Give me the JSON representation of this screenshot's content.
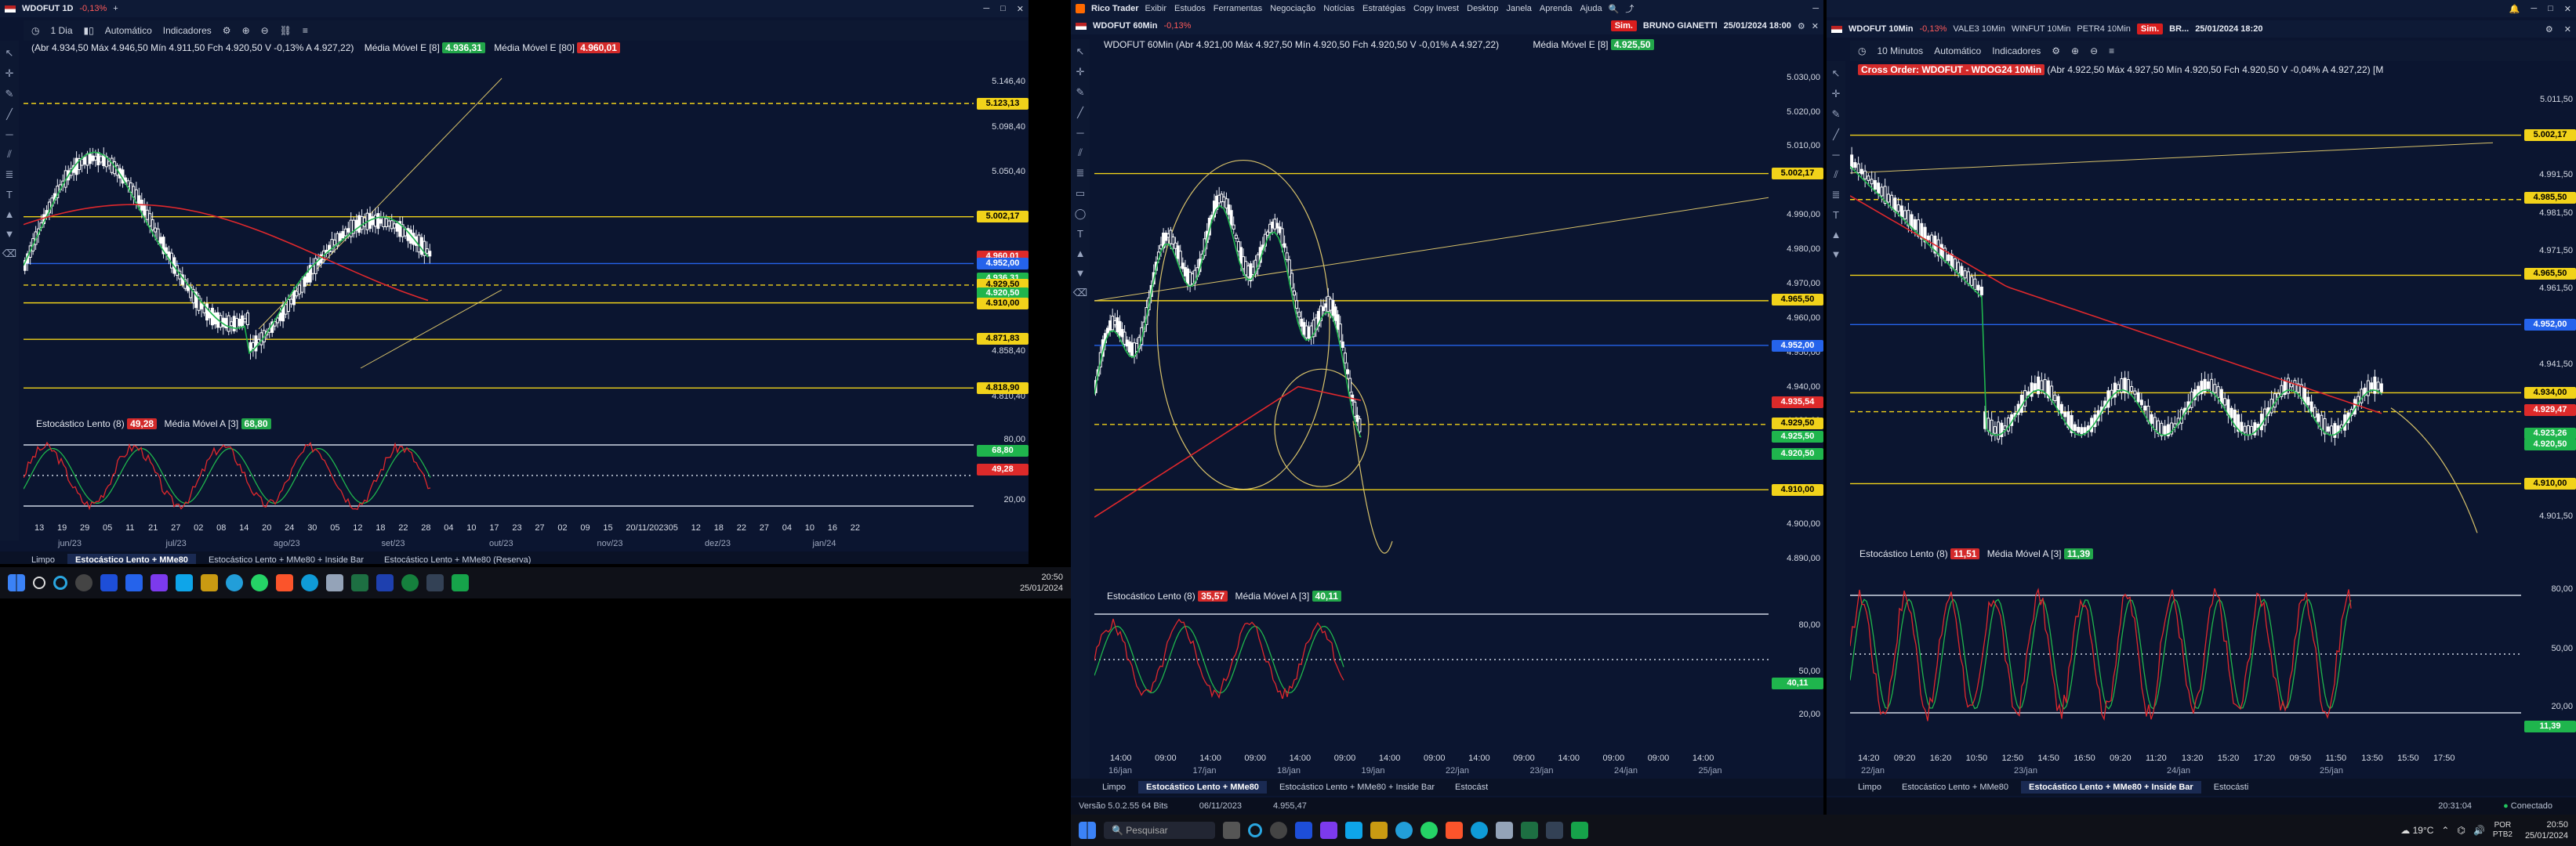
{
  "win1": {
    "title_symbol": "WDOFUT 1D",
    "title_change": "-0,13%",
    "timeframe": "1 Dia",
    "mode": "Automático",
    "indicators": "Indicadores",
    "quote": "(Abr 4.934,50 Máx 4.946,50 Mín 4.911,50 Fch 4.920,50 V -0,13% A 4.927,22)",
    "ma_fast_label": "Média Móvel E [8]",
    "ma_fast_value": "4.936,31",
    "ma_slow_label": "Média Móvel E [80]",
    "ma_slow_value": "4.960,01",
    "y_labels": [
      "5.146,40",
      "5.098,40",
      "5.050,40",
      "4.858,40",
      "4.810,40"
    ],
    "price_tags": [
      {
        "text": "5.123,13",
        "kind": "y"
      },
      {
        "text": "5.002,17",
        "kind": "y"
      },
      {
        "text": "4.960,01",
        "kind": "r"
      },
      {
        "text": "4.952,00",
        "kind": "b"
      },
      {
        "text": "4.936,31",
        "kind": "g"
      },
      {
        "text": "4.929,50",
        "kind": "y"
      },
      {
        "text": "4.920,50",
        "kind": "g"
      },
      {
        "text": "4.910,00",
        "kind": "y"
      },
      {
        "text": "4.871,83",
        "kind": "y"
      },
      {
        "text": "4.818,90",
        "kind": "y"
      }
    ],
    "stoch_label": "Estocástico Lento (8)",
    "stoch_value": "49,28",
    "stoch_ma_label": "Média Móvel A [3]",
    "stoch_ma_value": "68,80",
    "stoch_levels": [
      "80,00",
      "20,00"
    ],
    "stoch_tags": [
      "68,80",
      "49,28"
    ],
    "time_labels": [
      "13",
      "19",
      "29",
      "05",
      "11",
      "21",
      "27",
      "02",
      "08",
      "14",
      "20",
      "24",
      "30",
      "05",
      "12",
      "18",
      "22",
      "28",
      "04",
      "10",
      "17",
      "23",
      "27",
      "02",
      "09",
      "15",
      "20/11/2023",
      "05",
      "12",
      "18",
      "22",
      "27",
      "04",
      "10",
      "16",
      "22"
    ],
    "month_labels": [
      "jun/23",
      "jul/23",
      "ago/23",
      "set/23",
      "out/23",
      "nov/23",
      "dez/23",
      "jan/24"
    ],
    "tabs": [
      "Limpo",
      "Estocástico Lento + MMe80",
      "Estocástico Lento + MMe80 + Inside Bar",
      "Estocástico Lento + MMe80 (Reserva)"
    ],
    "active_tab": 1
  },
  "win2": {
    "app": "Rico Trader",
    "menus": [
      "Exibir",
      "Estudos",
      "Ferramentas",
      "Negociação",
      "Notícias",
      "Estratégias",
      "Copy Invest",
      "Desktop",
      "Janela",
      "Aprenda",
      "Ajuda"
    ],
    "chart_symbol": "WDOFUT 60Min",
    "title_change": "-0,13%",
    "sim": "Sim.",
    "user": "BRUNO GIANETTI",
    "datetime": "25/01/2024 18:00",
    "quote": "WDOFUT 60Min  (Abr 4.921,00 Máx 4.927,50 Mín 4.920,50 Fch 4.920,50 V -0,01% A 4.927,22)",
    "ma_label": "Média Móvel E [8]",
    "ma_value": "4.925,50",
    "y_labels": [
      "5.030,00",
      "5.020,00",
      "5.010,00",
      "4.990,00",
      "4.980,00",
      "4.970,00",
      "4.960,00",
      "4.950,00",
      "4.940,00",
      "4.930,00",
      "4.900,00",
      "4.890,00"
    ],
    "price_tags": [
      {
        "text": "5.002,17",
        "kind": "y"
      },
      {
        "text": "4.965,50",
        "kind": "y"
      },
      {
        "text": "4.952,00",
        "kind": "b"
      },
      {
        "text": "4.935,54",
        "kind": "r"
      },
      {
        "text": "4.929,50",
        "kind": "y"
      },
      {
        "text": "4.925,50",
        "kind": "g"
      },
      {
        "text": "4.920,50",
        "kind": "g"
      },
      {
        "text": "4.910,00",
        "kind": "y"
      }
    ],
    "stoch_label": "Estocástico Lento (8)",
    "stoch_value": "35,57",
    "stoch_ma_label": "Média Móvel A [3]",
    "stoch_ma_value": "40,11",
    "stoch_levels": [
      "80,00",
      "50,00",
      "20,00"
    ],
    "time_labels": [
      "14:00",
      "09:00",
      "14:00",
      "09:00",
      "14:00",
      "09:00",
      "14:00",
      "09:00",
      "14:00",
      "09:00",
      "14:00",
      "09:00",
      "09:00",
      "14:00"
    ],
    "date_labels": [
      "16/jan",
      "17/jan",
      "18/jan",
      "19/jan",
      "22/jan",
      "23/jan",
      "24/jan",
      "25/jan"
    ],
    "tabs": [
      "Limpo",
      "Estocástico Lento + MMe80",
      "Estocástico Lento + MMe80 + Inside Bar",
      "Estocást"
    ],
    "active_tab": 1,
    "version": "Versão 5.0.2.55 64 Bits",
    "status_date": "06/11/2023",
    "status_value": "4.955,47"
  },
  "win3": {
    "chart_symbol": "WDOFUT 10Min",
    "title_change": "-0,13%",
    "ticker_tabs": [
      "VALE3 10Min",
      "WINFUT 10Min",
      "PETR4 10Min"
    ],
    "sim": "Sim.",
    "user": "BR...",
    "datetime": "25/01/2024 18:20",
    "timeframe": "10 Minutos",
    "mode": "Automático",
    "indicators": "Indicadores",
    "quote": "Cross Order: WDOFUT - WDOG24 10Min",
    "quote2": "(Abr 4.922,50 Máx 4.927,50 Mín 4.920,50 Fch 4.920,50 V -0,04% A 4.927,22) [M",
    "y_labels": [
      "5.011,50",
      "4.991,50",
      "4.981,50",
      "4.971,50",
      "4.961,50",
      "4.941,50",
      "4.901,50"
    ],
    "price_tags": [
      {
        "text": "5.002,17",
        "kind": "y"
      },
      {
        "text": "4.985,50",
        "kind": "y"
      },
      {
        "text": "4.965,50",
        "kind": "y"
      },
      {
        "text": "4.952,00",
        "kind": "b"
      },
      {
        "text": "4.934,00",
        "kind": "y"
      },
      {
        "text": "4.929,47",
        "kind": "r"
      },
      {
        "text": "4.923,26",
        "kind": "g"
      },
      {
        "text": "4.920,50",
        "kind": "g"
      },
      {
        "text": "4.910,00",
        "kind": "y"
      }
    ],
    "stoch_label": "Estocástico Lento (8)",
    "stoch_value": "11,51",
    "stoch_ma_label": "Média Móvel A [3]",
    "stoch_ma_value": "11,39",
    "stoch_levels": [
      "80,00",
      "50,00",
      "20,00"
    ],
    "stoch_tag": "11,39",
    "time_labels": [
      "14:20",
      "09:20",
      "16:20",
      "10:50",
      "12:50",
      "14:50",
      "16:50",
      "09:20",
      "11:20",
      "13:20",
      "15:20",
      "17:20",
      "09:50",
      "11:50",
      "13:50",
      "15:50",
      "17:50"
    ],
    "date_labels": [
      "22/jan",
      "23/jan",
      "24/jan",
      "25/jan"
    ],
    "tabs": [
      "Limpo",
      "Estocástico Lento + MMe80",
      "Estocástico Lento + MMe80 + Inside Bar",
      "Estocásti"
    ],
    "active_tab": 2,
    "status_time": "20:31:04",
    "status_conn": "Conectado"
  },
  "taskbar_left": {
    "time": "20:50",
    "date": "25/01/2024"
  },
  "taskbar_right": {
    "search_placeholder": "Pesquisar",
    "weather": "19°C",
    "lang1": "POR",
    "lang2": "PTB2",
    "time": "20:50",
    "date": "25/01/2024"
  },
  "colors": {
    "bg": "#0b1530",
    "candle": "#ffffff",
    "ma_green": "#1fb54d",
    "ma_red": "#e0282c",
    "level_yellow": "#f1d21a",
    "level_blue": "#2563eb"
  }
}
